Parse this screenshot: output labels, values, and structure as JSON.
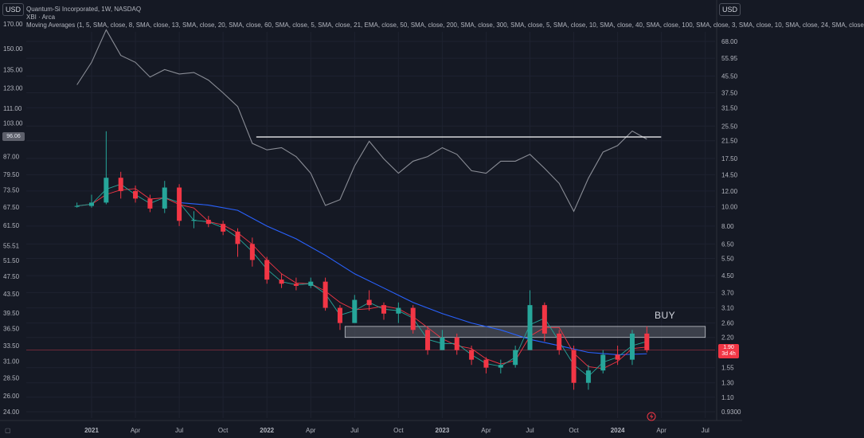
{
  "header": {
    "currency_left": "USD",
    "currency_right": "USD",
    "title": "Quantum-Si Incorporated, 1W, NASDAQ",
    "compare_symbol": "XBI · Arca",
    "ma_legend": "Moving Averages (1, 5, SMA, close, 8, SMA, close, 13, SMA, close, 20, SMA, close, 60, SMA, close, 5, SMA, close, 21, EMA, close, 50, SMA, close, 200, SMA, close, 300, SMA, close, 5, SMA, close, 10, SMA, close, 40, SMA, close, 100, SMA, close, 3, SMA, close, 10, SMA, close, 24, SMA, close"
  },
  "labels": {
    "buy": "BUY",
    "left_last": "96.06",
    "right_last_price": "1.90",
    "right_countdown": "3d 4h"
  },
  "colors": {
    "background": "#151924",
    "up": "#26a69a",
    "down": "#f23645",
    "xbi_line": "#8a8d96",
    "ma_fast": "#26a69a",
    "ma_red": "#f23645",
    "ma_blue": "#2962ff",
    "zone": "#5d606b",
    "resistance": "#ffffff"
  },
  "chart_data": {
    "type": "candlestick",
    "scale": "log",
    "x_ticks": [
      "2021",
      "Apr",
      "Jul",
      "Oct",
      "2022",
      "Apr",
      "Jul",
      "Oct",
      "2023",
      "Apr",
      "Jul",
      "Oct",
      "2024",
      "Apr",
      "Jul"
    ],
    "left_axis_ticks": [
      "170.00",
      "150.00",
      "135.00",
      "123.00",
      "111.00",
      "103.00",
      "96.06",
      "87.00",
      "79.50",
      "73.50",
      "67.50",
      "61.50",
      "55.51",
      "51.50",
      "47.50",
      "43.50",
      "39.50",
      "36.50",
      "33.50",
      "31.00",
      "28.50",
      "26.00",
      "24.00"
    ],
    "right_axis_ticks": [
      "68.00",
      "55.95",
      "45.50",
      "37.50",
      "31.50",
      "25.50",
      "21.50",
      "17.50",
      "14.50",
      "12.00",
      "10.00",
      "8.00",
      "6.50",
      "5.50",
      "4.50",
      "3.70",
      "3.10",
      "2.60",
      "2.20",
      "1.90",
      "1.55",
      "1.30",
      "1.10",
      "0.9300"
    ],
    "right_axis_range": [
      0.93,
      68
    ],
    "left_axis_range": [
      24,
      170
    ],
    "buy_zone": {
      "x_from": "2022-07",
      "x_to": "2024-07",
      "price_low": 2.2,
      "price_high": 2.5
    },
    "resistance_line": {
      "x_from": "2021-12",
      "x_to": "2024-03",
      "xbi_value": 96.06
    },
    "last_price": 1.9,
    "xbi_close_series": [
      {
        "x": "2020-12",
        "y": 125
      },
      {
        "x": "2021-01",
        "y": 140
      },
      {
        "x": "2021-02",
        "y": 165
      },
      {
        "x": "2021-03",
        "y": 145
      },
      {
        "x": "2021-04",
        "y": 140
      },
      {
        "x": "2021-05",
        "y": 130
      },
      {
        "x": "2021-06",
        "y": 135
      },
      {
        "x": "2021-07",
        "y": 132
      },
      {
        "x": "2021-08",
        "y": 133
      },
      {
        "x": "2021-09",
        "y": 128
      },
      {
        "x": "2021-10",
        "y": 120
      },
      {
        "x": "2021-11",
        "y": 112
      },
      {
        "x": "2021-12",
        "y": 93
      },
      {
        "x": "2022-01",
        "y": 90
      },
      {
        "x": "2022-02",
        "y": 91
      },
      {
        "x": "2022-03",
        "y": 87
      },
      {
        "x": "2022-04",
        "y": 80
      },
      {
        "x": "2022-05",
        "y": 68
      },
      {
        "x": "2022-06",
        "y": 70
      },
      {
        "x": "2022-07",
        "y": 83
      },
      {
        "x": "2022-08",
        "y": 94
      },
      {
        "x": "2022-09",
        "y": 86
      },
      {
        "x": "2022-10",
        "y": 80
      },
      {
        "x": "2022-11",
        "y": 85
      },
      {
        "x": "2022-12",
        "y": 87
      },
      {
        "x": "2023-01",
        "y": 91
      },
      {
        "x": "2023-02",
        "y": 88
      },
      {
        "x": "2023-03",
        "y": 81
      },
      {
        "x": "2023-04",
        "y": 80
      },
      {
        "x": "2023-05",
        "y": 85
      },
      {
        "x": "2023-06",
        "y": 85
      },
      {
        "x": "2023-07",
        "y": 88
      },
      {
        "x": "2023-08",
        "y": 82
      },
      {
        "x": "2023-09",
        "y": 76
      },
      {
        "x": "2023-10",
        "y": 66
      },
      {
        "x": "2023-11",
        "y": 78
      },
      {
        "x": "2023-12",
        "y": 89
      },
      {
        "x": "2024-01",
        "y": 92
      },
      {
        "x": "2024-02",
        "y": 99
      },
      {
        "x": "2024-03",
        "y": 95
      }
    ],
    "price_series": [
      {
        "x": "2020-12",
        "o": 10.0,
        "h": 10.5,
        "l": 9.9,
        "c": 10.1
      },
      {
        "x": "2021-01",
        "o": 10.1,
        "h": 11.5,
        "l": 9.9,
        "c": 10.5
      },
      {
        "x": "2021-02",
        "o": 10.5,
        "h": 24.0,
        "l": 10.3,
        "c": 14.0
      },
      {
        "x": "2021-03",
        "o": 14.0,
        "h": 15.0,
        "l": 11.0,
        "c": 12.0
      },
      {
        "x": "2021-04",
        "o": 12.0,
        "h": 12.8,
        "l": 10.5,
        "c": 11.0
      },
      {
        "x": "2021-05",
        "o": 11.0,
        "h": 11.5,
        "l": 9.4,
        "c": 9.8
      },
      {
        "x": "2021-06",
        "o": 9.8,
        "h": 13.5,
        "l": 9.3,
        "c": 12.5
      },
      {
        "x": "2021-07",
        "o": 12.5,
        "h": 13.0,
        "l": 8.0,
        "c": 8.5
      },
      {
        "x": "2021-08",
        "o": 8.5,
        "h": 9.5,
        "l": 7.8,
        "c": 8.6
      },
      {
        "x": "2021-09",
        "o": 8.6,
        "h": 9.0,
        "l": 7.9,
        "c": 8.2
      },
      {
        "x": "2021-10",
        "o": 8.2,
        "h": 8.5,
        "l": 7.2,
        "c": 7.5
      },
      {
        "x": "2021-11",
        "o": 7.5,
        "h": 7.8,
        "l": 5.6,
        "c": 6.5
      },
      {
        "x": "2021-12",
        "o": 6.5,
        "h": 7.0,
        "l": 5.0,
        "c": 5.4
      },
      {
        "x": "2022-01",
        "o": 5.4,
        "h": 5.6,
        "l": 4.1,
        "c": 4.3
      },
      {
        "x": "2022-02",
        "o": 4.3,
        "h": 4.6,
        "l": 3.9,
        "c": 4.1
      },
      {
        "x": "2022-03",
        "o": 4.1,
        "h": 4.4,
        "l": 3.8,
        "c": 4.0
      },
      {
        "x": "2022-04",
        "o": 4.0,
        "h": 4.4,
        "l": 3.9,
        "c": 4.2
      },
      {
        "x": "2022-05",
        "o": 4.2,
        "h": 4.4,
        "l": 3.0,
        "c": 3.1
      },
      {
        "x": "2022-06",
        "o": 3.1,
        "h": 3.2,
        "l": 2.4,
        "c": 2.6
      },
      {
        "x": "2022-07",
        "o": 2.6,
        "h": 3.6,
        "l": 2.6,
        "c": 3.4
      },
      {
        "x": "2022-08",
        "o": 3.4,
        "h": 3.8,
        "l": 3.0,
        "c": 3.2
      },
      {
        "x": "2022-09",
        "o": 3.2,
        "h": 3.3,
        "l": 2.7,
        "c": 2.9
      },
      {
        "x": "2022-10",
        "o": 2.9,
        "h": 3.3,
        "l": 2.6,
        "c": 3.1
      },
      {
        "x": "2022-11",
        "o": 3.1,
        "h": 3.2,
        "l": 2.3,
        "c": 2.4
      },
      {
        "x": "2022-12",
        "o": 2.4,
        "h": 2.5,
        "l": 1.8,
        "c": 1.9
      },
      {
        "x": "2023-01",
        "o": 1.9,
        "h": 2.4,
        "l": 1.9,
        "c": 2.2
      },
      {
        "x": "2023-02",
        "o": 2.2,
        "h": 2.3,
        "l": 1.8,
        "c": 1.9
      },
      {
        "x": "2023-03",
        "o": 1.9,
        "h": 2.0,
        "l": 1.6,
        "c": 1.7
      },
      {
        "x": "2023-04",
        "o": 1.7,
        "h": 1.75,
        "l": 1.45,
        "c": 1.55
      },
      {
        "x": "2023-05",
        "o": 1.55,
        "h": 1.7,
        "l": 1.45,
        "c": 1.6
      },
      {
        "x": "2023-06",
        "o": 1.6,
        "h": 2.0,
        "l": 1.55,
        "c": 1.9
      },
      {
        "x": "2023-07",
        "o": 1.9,
        "h": 3.8,
        "l": 1.9,
        "c": 3.2
      },
      {
        "x": "2023-08",
        "o": 3.2,
        "h": 3.3,
        "l": 2.1,
        "c": 2.3
      },
      {
        "x": "2023-09",
        "o": 2.3,
        "h": 2.4,
        "l": 1.8,
        "c": 1.9
      },
      {
        "x": "2023-10",
        "o": 1.9,
        "h": 2.0,
        "l": 1.2,
        "c": 1.3
      },
      {
        "x": "2023-11",
        "o": 1.3,
        "h": 1.6,
        "l": 1.2,
        "c": 1.5
      },
      {
        "x": "2023-12",
        "o": 1.5,
        "h": 1.9,
        "l": 1.45,
        "c": 1.8
      },
      {
        "x": "2024-01",
        "o": 1.8,
        "h": 2.0,
        "l": 1.6,
        "c": 1.7
      },
      {
        "x": "2024-02",
        "o": 1.7,
        "h": 2.4,
        "l": 1.6,
        "c": 2.3
      },
      {
        "x": "2024-03",
        "o": 2.3,
        "h": 2.5,
        "l": 1.85,
        "c": 1.9
      }
    ],
    "ma_blue_series": [
      {
        "x": "2021-07",
        "y": 10.5
      },
      {
        "x": "2021-09",
        "y": 10.2
      },
      {
        "x": "2021-11",
        "y": 9.6
      },
      {
        "x": "2022-01",
        "y": 8.0
      },
      {
        "x": "2022-03",
        "y": 6.9
      },
      {
        "x": "2022-05",
        "y": 5.7
      },
      {
        "x": "2022-07",
        "y": 4.6
      },
      {
        "x": "2022-09",
        "y": 3.9
      },
      {
        "x": "2022-11",
        "y": 3.3
      },
      {
        "x": "2023-01",
        "y": 2.9
      },
      {
        "x": "2023-03",
        "y": 2.6
      },
      {
        "x": "2023-05",
        "y": 2.4
      },
      {
        "x": "2023-07",
        "y": 2.15
      },
      {
        "x": "2023-09",
        "y": 2.0
      },
      {
        "x": "2023-11",
        "y": 1.85
      },
      {
        "x": "2024-01",
        "y": 1.8
      },
      {
        "x": "2024-03",
        "y": 1.82
      }
    ]
  }
}
